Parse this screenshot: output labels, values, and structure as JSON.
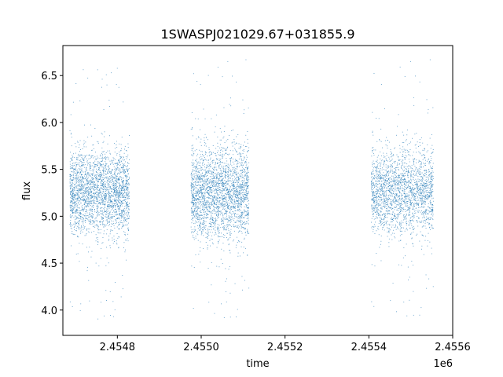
{
  "chart_data": {
    "type": "scatter",
    "title": "1SWASPJ021029.67+031855.9",
    "xlabel": "time",
    "ylabel": "flux",
    "x_offset_label": "1e6",
    "xlim": [
      2454670,
      2455600
    ],
    "ylim": [
      3.73,
      6.82
    ],
    "x_ticks": [
      {
        "value": 2454800,
        "label": "2.4548"
      },
      {
        "value": 2455000,
        "label": "2.4550"
      },
      {
        "value": 2455200,
        "label": "2.4552"
      },
      {
        "value": 2455400,
        "label": "2.4554"
      },
      {
        "value": 2455600,
        "label": "2.4556"
      }
    ],
    "y_ticks": [
      {
        "value": 4.0,
        "label": "4.0"
      },
      {
        "value": 4.5,
        "label": "4.5"
      },
      {
        "value": 5.0,
        "label": "5.0"
      },
      {
        "value": 5.5,
        "label": "5.5"
      },
      {
        "value": 6.0,
        "label": "6.0"
      },
      {
        "value": 6.5,
        "label": "6.5"
      }
    ],
    "grid": false,
    "marker_color": "#1f77b4",
    "series": [
      {
        "segments": [
          {
            "x_range": [
              2454686,
              2454828
            ],
            "center": 5.25,
            "spread": 0.22,
            "outlier_min": 3.9,
            "outlier_max": 6.65,
            "count": 2600
          },
          {
            "x_range": [
              2454975,
              2455113
            ],
            "center": 5.25,
            "spread": 0.24,
            "outlier_min": 3.88,
            "outlier_max": 6.68,
            "count": 2600
          },
          {
            "x_range": [
              2455405,
              2455553
            ],
            "center": 5.27,
            "spread": 0.22,
            "outlier_min": 3.9,
            "outlier_max": 6.68,
            "count": 2200
          }
        ]
      }
    ]
  }
}
